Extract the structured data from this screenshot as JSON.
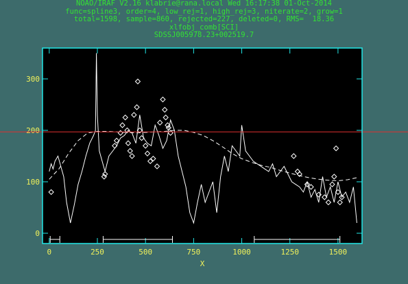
{
  "header": {
    "line1": "NOAO/IRAF V2.16 klabrie@rana.local Wed 16:17:38 01-Oct-2014",
    "line2": "func=spline3, order=4, low_rej=1, high_rej=3, niterate=2, grow=1",
    "line3": "total=1598, sample=860, rejected=227, deleted=0, RMS=  18.36",
    "line4": "xlfobj_comb[SCI]",
    "line5": "SDSSJ005978.23+002519.7"
  },
  "colors": {
    "background": "#3d6b6b",
    "axes_frame": "#22e8e8",
    "axis_labels": "#f2f25a",
    "header_text": "#34e234",
    "data": "#ffffff",
    "cursor_line": "#e03030"
  },
  "chart_data": {
    "type": "line",
    "title": "SDSSJ005978.23+002519.7",
    "xlabel": "X",
    "ylabel": "",
    "xlim": [
      -35,
      1625
    ],
    "ylim": [
      -20,
      360
    ],
    "x_ticks": [
      0,
      250,
      500,
      750,
      1000,
      1250,
      1500
    ],
    "y_ticks": [
      0,
      100,
      200,
      300
    ],
    "cursor_y": 197,
    "spectrum": {
      "x": [
        0,
        10,
        20,
        30,
        45,
        60,
        75,
        90,
        110,
        130,
        150,
        170,
        190,
        210,
        230,
        240,
        245,
        250,
        260,
        275,
        290,
        310,
        330,
        350,
        370,
        390,
        410,
        430,
        450,
        470,
        490,
        510,
        530,
        550,
        570,
        590,
        610,
        630,
        650,
        670,
        690,
        710,
        730,
        750,
        770,
        790,
        810,
        830,
        850,
        870,
        890,
        910,
        930,
        950,
        970,
        990,
        1000,
        1010,
        1020,
        1040,
        1060,
        1080,
        1100,
        1120,
        1140,
        1160,
        1180,
        1200,
        1220,
        1240,
        1260,
        1280,
        1300,
        1320,
        1340,
        1360,
        1380,
        1400,
        1420,
        1440,
        1460,
        1480,
        1500,
        1520,
        1540,
        1560,
        1580,
        1598
      ],
      "y": [
        120,
        135,
        125,
        140,
        150,
        130,
        110,
        60,
        20,
        55,
        95,
        120,
        150,
        175,
        190,
        200,
        350,
        230,
        160,
        140,
        120,
        150,
        160,
        170,
        185,
        190,
        200,
        195,
        175,
        230,
        185,
        175,
        170,
        210,
        190,
        165,
        180,
        220,
        200,
        150,
        120,
        90,
        40,
        20,
        60,
        95,
        60,
        80,
        100,
        40,
        110,
        150,
        120,
        170,
        160,
        150,
        210,
        185,
        160,
        150,
        140,
        135,
        130,
        125,
        120,
        135,
        110,
        120,
        130,
        115,
        100,
        95,
        90,
        80,
        100,
        70,
        85,
        60,
        110,
        70,
        90,
        60,
        100,
        70,
        80,
        60,
        90,
        20
      ],
      "stroke": "#ffffff"
    },
    "fit": {
      "x": [
        0,
        50,
        100,
        150,
        200,
        250,
        300,
        350,
        400,
        450,
        500,
        550,
        600,
        650,
        700,
        750,
        800,
        850,
        900,
        950,
        1000,
        1050,
        1100,
        1150,
        1200,
        1250,
        1300,
        1350,
        1400,
        1450,
        1500,
        1550,
        1598
      ],
      "y": [
        105,
        125,
        155,
        180,
        195,
        198,
        198,
        197,
        196,
        195,
        196,
        197,
        198,
        200,
        200,
        196,
        190,
        180,
        168,
        155,
        145,
        138,
        132,
        128,
        122,
        117,
        112,
        108,
        105,
        103,
        102,
        104,
        108
      ],
      "style": "dashed",
      "stroke": "#ffffff"
    },
    "rejected_points": {
      "x": [
        10,
        285,
        290,
        340,
        350,
        370,
        380,
        395,
        405,
        410,
        420,
        430,
        440,
        455,
        460,
        470,
        480,
        500,
        510,
        525,
        540,
        560,
        575,
        590,
        600,
        605,
        615,
        620,
        630,
        1270,
        1290,
        1300,
        1340,
        1360,
        1400,
        1430,
        1450,
        1470,
        1480,
        1490,
        1500,
        1510,
        1520
      ],
      "y": [
        80,
        110,
        115,
        170,
        180,
        195,
        210,
        225,
        200,
        175,
        160,
        150,
        230,
        245,
        295,
        200,
        185,
        170,
        155,
        140,
        145,
        130,
        215,
        260,
        240,
        225,
        210,
        205,
        195,
        150,
        120,
        115,
        95,
        90,
        75,
        70,
        60,
        95,
        110,
        165,
        80,
        60,
        70
      ],
      "marker": "diamond"
    },
    "sample_regions": [
      [
        5,
        55
      ],
      [
        280,
        640
      ],
      [
        1065,
        1510
      ]
    ]
  }
}
